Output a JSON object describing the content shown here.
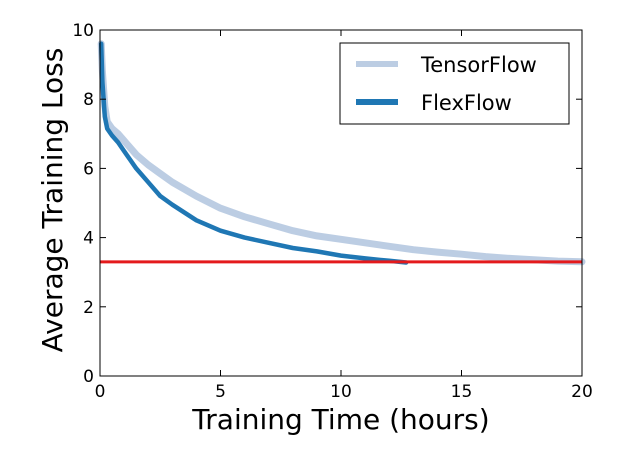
{
  "chart_data": {
    "type": "line",
    "title": "",
    "xlabel": "Training Time (hours)",
    "ylabel": "Average Training Loss",
    "xlim": [
      0,
      20
    ],
    "ylim": [
      0,
      10
    ],
    "xticks": [
      0,
      5,
      10,
      15,
      20
    ],
    "yticks": [
      0,
      2,
      4,
      6,
      8,
      10
    ],
    "grid": false,
    "legend": "top-right",
    "series": [
      {
        "name": "TensorFlow",
        "color": "#b0c4de",
        "x": [
          0.05,
          0.1,
          0.2,
          0.3,
          0.5,
          0.75,
          1,
          1.5,
          2,
          2.5,
          3,
          4,
          5,
          6,
          7,
          8,
          9,
          10,
          11,
          12,
          13,
          14,
          15,
          16,
          17,
          18,
          19,
          20
        ],
        "y": [
          9.6,
          8.8,
          7.8,
          7.35,
          7.15,
          7.0,
          6.8,
          6.4,
          6.1,
          5.85,
          5.6,
          5.2,
          4.85,
          4.6,
          4.4,
          4.2,
          4.05,
          3.95,
          3.85,
          3.75,
          3.65,
          3.58,
          3.52,
          3.45,
          3.4,
          3.36,
          3.32,
          3.3
        ]
      },
      {
        "name": "FlexFlow",
        "color": "#1f77b4",
        "x": [
          0.05,
          0.1,
          0.2,
          0.3,
          0.5,
          0.75,
          1,
          1.5,
          2,
          2.5,
          3,
          4,
          5,
          6,
          7,
          8,
          9,
          10,
          11,
          12,
          12.7
        ],
        "y": [
          9.6,
          8.5,
          7.5,
          7.15,
          6.95,
          6.75,
          6.5,
          6.0,
          5.6,
          5.2,
          4.95,
          4.5,
          4.2,
          4.0,
          3.85,
          3.7,
          3.6,
          3.48,
          3.4,
          3.33,
          3.28
        ]
      }
    ],
    "reference_line": {
      "y": 3.3,
      "color": "#e41a1c"
    }
  }
}
